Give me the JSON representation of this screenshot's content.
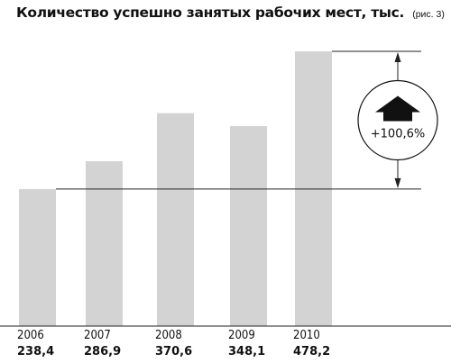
{
  "chart_data": {
    "type": "bar",
    "title": "Количество успешно занятых рабочих мест, тыс.",
    "title_ref": "(рис. 3)",
    "categories": [
      "2006",
      "2007",
      "2008",
      "2009",
      "2010"
    ],
    "values": [
      238.4,
      286.9,
      370.6,
      348.1,
      478.2
    ],
    "value_labels": [
      "238,4",
      "286,9",
      "370,6",
      "348,1",
      "478,2"
    ],
    "ylim": [
      0,
      478.2
    ],
    "grid": false,
    "annotation": {
      "text": "+100,6%",
      "from_category": "2006",
      "to_category": "2010",
      "icon": "up-arrow-icon"
    },
    "colors": {
      "bar": "#d3d3d3",
      "lines": "#222222",
      "text": "#111111",
      "annotation_circle": "#111111"
    }
  }
}
